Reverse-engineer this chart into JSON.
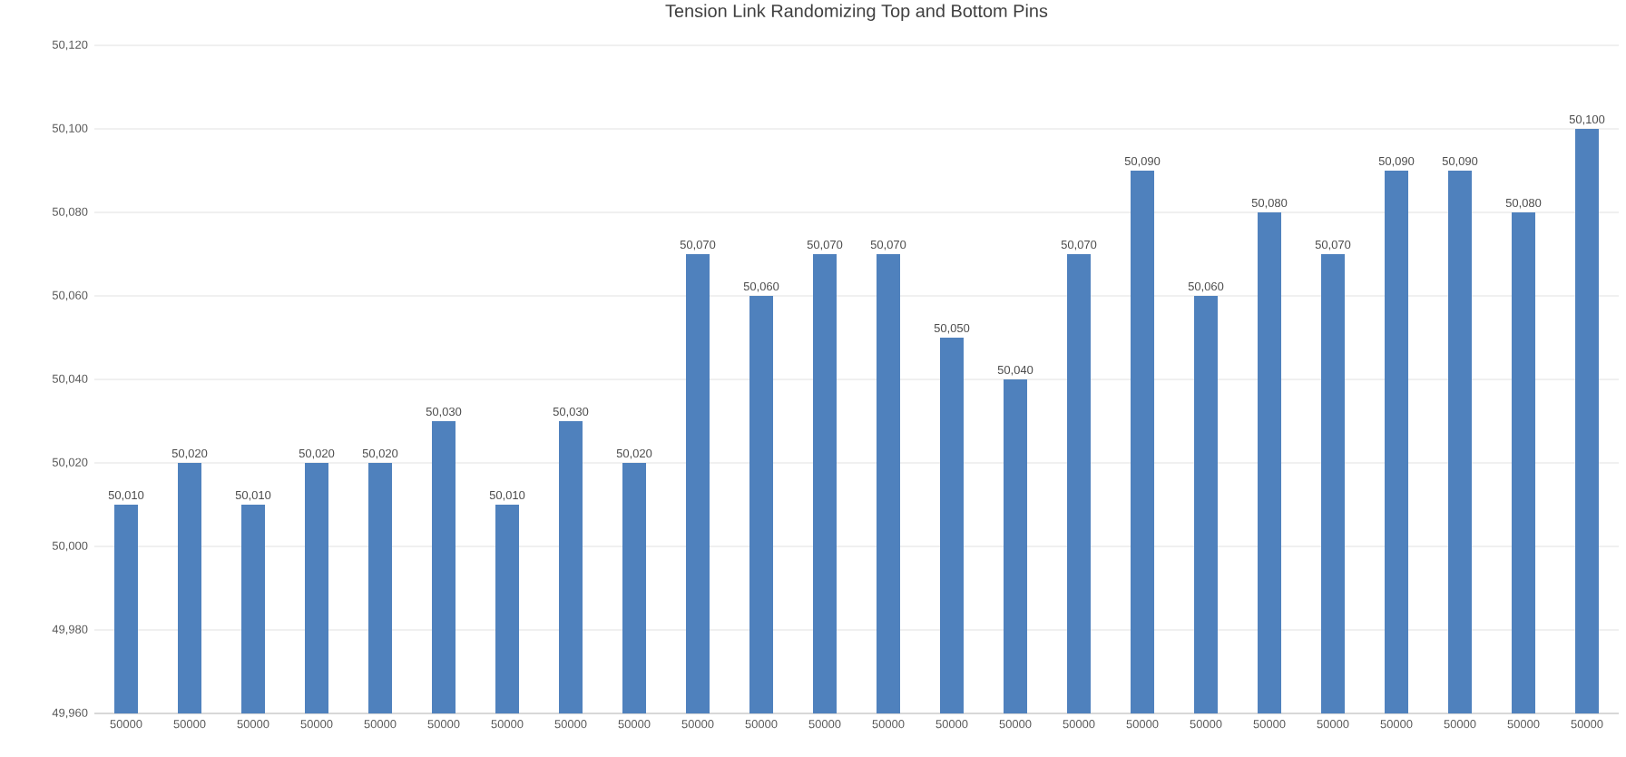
{
  "chart_data": {
    "type": "bar",
    "title": "Tension Link Randomizing Top and Bottom Pins",
    "categories": [
      "50000",
      "50000",
      "50000",
      "50000",
      "50000",
      "50000",
      "50000",
      "50000",
      "50000",
      "50000",
      "50000",
      "50000",
      "50000",
      "50000",
      "50000",
      "50000",
      "50000",
      "50000",
      "50000",
      "50000",
      "50000",
      "50000",
      "50000",
      "50000"
    ],
    "values": [
      50010,
      50020,
      50010,
      50020,
      50020,
      50030,
      50010,
      50030,
      50020,
      50070,
      50060,
      50070,
      50070,
      50050,
      50040,
      50070,
      50090,
      50060,
      50080,
      50070,
      50090,
      50090,
      50080,
      50100
    ],
    "value_labels": [
      "50,010",
      "50,020",
      "50,010",
      "50,020",
      "50,020",
      "50,030",
      "50,010",
      "50,030",
      "50,020",
      "50,070",
      "50,060",
      "50,070",
      "50,070",
      "50,050",
      "50,040",
      "50,070",
      "50,090",
      "50,060",
      "50,080",
      "50,070",
      "50,090",
      "50,090",
      "50,080",
      "50,100"
    ],
    "color": "#4f81bd",
    "ylim": [
      49960,
      50120
    ],
    "yticks": [
      {
        "value": 49960,
        "label": "49,960"
      },
      {
        "value": 49980,
        "label": "49,980"
      },
      {
        "value": 50000,
        "label": "50,000"
      },
      {
        "value": 50020,
        "label": "50,020"
      },
      {
        "value": 50040,
        "label": "50,040"
      },
      {
        "value": 50060,
        "label": "50,060"
      },
      {
        "value": 50080,
        "label": "50,080"
      },
      {
        "value": 50100,
        "label": "50,100"
      },
      {
        "value": 50120,
        "label": "50,120"
      }
    ],
    "grid": "y"
  }
}
